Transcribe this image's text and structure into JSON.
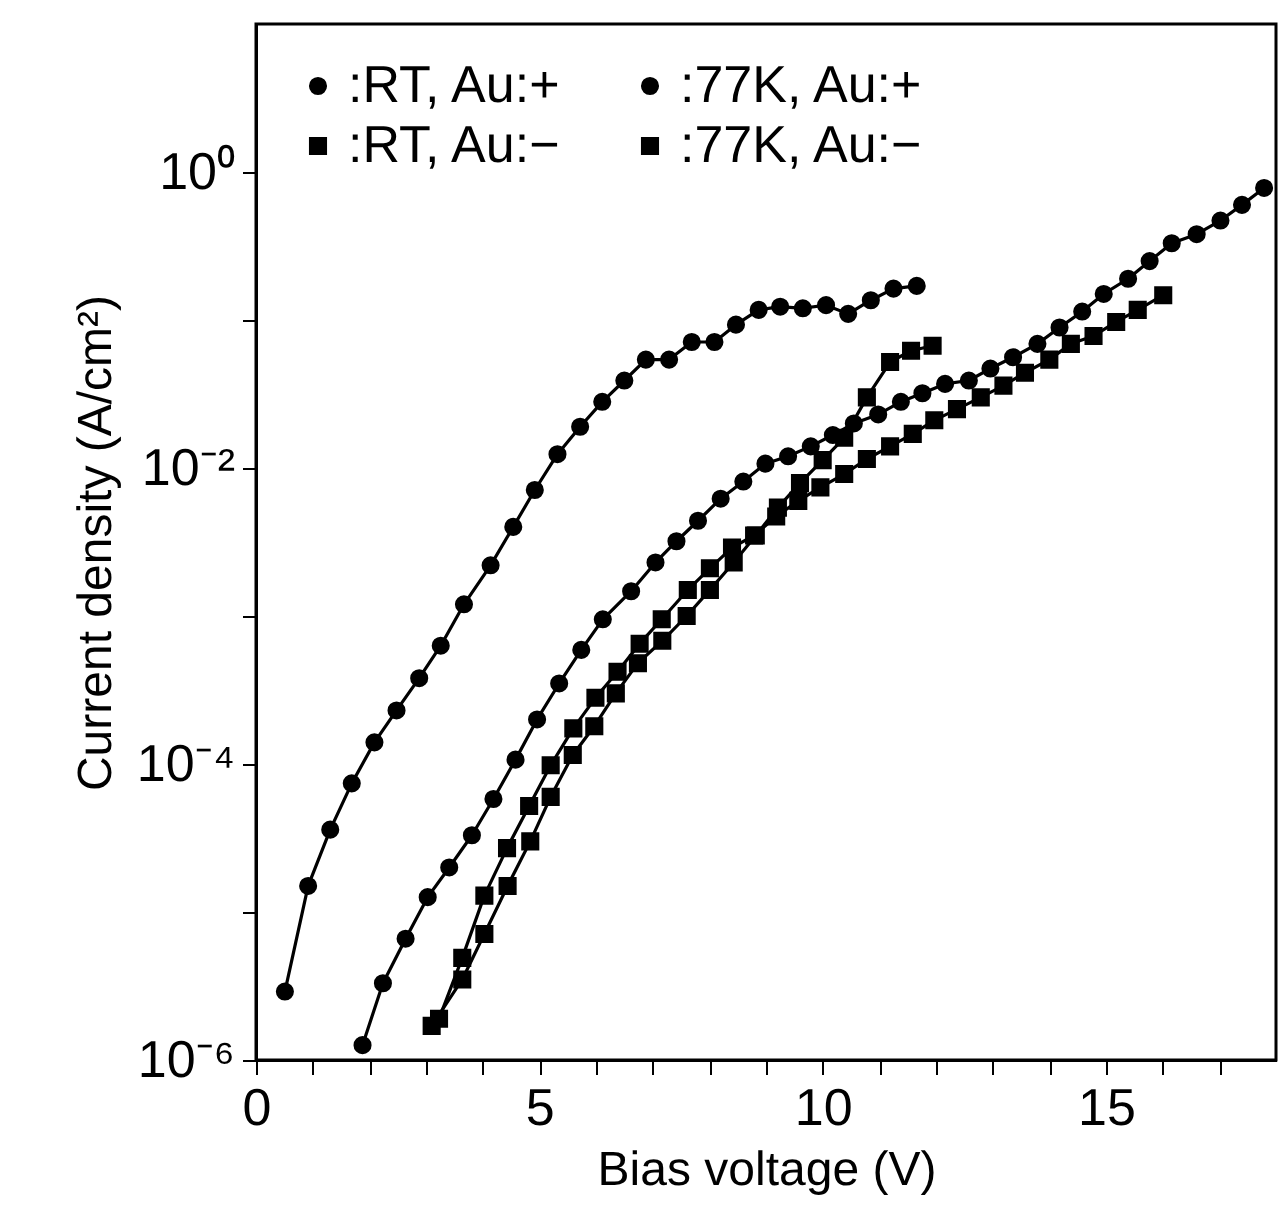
{
  "chart_data": {
    "type": "line",
    "xlabel": "Bias voltage (V)",
    "ylabel": "Current density (A/cm²)",
    "log": "y",
    "grid": false,
    "legend": "top left",
    "line_style": "solid",
    "xlim": [
      0,
      18
    ],
    "xticks": [
      0,
      {
        "value": 1,
        "label": null
      },
      {
        "value": 2,
        "label": null
      },
      {
        "value": 3,
        "label": null
      },
      {
        "value": 4,
        "label": null
      },
      5,
      {
        "value": 6,
        "label": null
      },
      {
        "value": 7,
        "label": null
      },
      {
        "value": 8,
        "label": null
      },
      {
        "value": 9,
        "label": null
      },
      10,
      {
        "value": 11,
        "label": null
      },
      {
        "value": 12,
        "label": null
      },
      {
        "value": 13,
        "label": null
      },
      {
        "value": 14,
        "label": null
      },
      15,
      {
        "value": 16,
        "label": null
      },
      {
        "value": 17,
        "label": null
      }
    ],
    "ylim": [
      1e-06,
      10
    ],
    "yticks": [
      {
        "value": 1e-06,
        "label": "10⁻⁶"
      },
      {
        "value": 1e-05,
        "label": null
      },
      {
        "value": 0.0001,
        "label": "10⁻⁴"
      },
      {
        "value": 0.001,
        "label": null
      },
      {
        "value": 0.01,
        "label": "10⁻²"
      },
      {
        "value": 0.1,
        "label": null
      },
      {
        "value": 1,
        "label": "10⁰"
      }
    ],
    "series": [
      {
        "name": ":RT, Au:+",
        "color": "#000000",
        "marker": "circle",
        "x": [
          0.51,
          0.92,
          1.31,
          1.69,
          2.09,
          2.48,
          2.88,
          3.26,
          3.67,
          4.14,
          4.54,
          4.92,
          5.32,
          5.72,
          6.11,
          6.5,
          6.88,
          7.29,
          7.69,
          8.09,
          8.47,
          8.87,
          9.25,
          9.65,
          10.06,
          10.45,
          10.85,
          11.25,
          11.66
        ],
        "values": [
          2.9e-06,
          1.5e-05,
          3.6e-05,
          7.4e-05,
          0.00014,
          0.00023,
          0.00038,
          0.00063,
          0.0012,
          0.0022,
          0.004,
          0.0071,
          0.0124,
          0.019,
          0.028,
          0.039,
          0.054,
          0.054,
          0.071,
          0.071,
          0.093,
          0.117,
          0.123,
          0.12,
          0.126,
          0.11,
          0.136,
          0.163,
          0.17
        ]
      },
      {
        "name": ":RT, Au:−",
        "color": "#000000",
        "marker": "square",
        "x": [
          3.1,
          3.64,
          4.03,
          4.44,
          4.84,
          5.2,
          5.59,
          5.97,
          6.35,
          6.74,
          7.17,
          7.6,
          8.01,
          8.43,
          8.82,
          9.21,
          9.6,
          10.0,
          10.38,
          10.78,
          11.19,
          11.56,
          11.94
        ],
        "values": [
          1.7e-06,
          3.5e-06,
          7.1e-06,
          1.5e-05,
          3e-05,
          6e-05,
          0.000115,
          0.00018,
          0.0003,
          0.00048,
          0.00068,
          0.001,
          0.0015,
          0.0023,
          0.0035,
          0.0054,
          0.0079,
          0.0113,
          0.016,
          0.03,
          0.052,
          0.062,
          0.067
        ]
      },
      {
        "name": ":77K, Au:+",
        "color": "#000000",
        "marker": "circle",
        "x": [
          1.88,
          2.24,
          2.64,
          3.03,
          3.41,
          3.81,
          4.19,
          4.58,
          4.96,
          5.35,
          5.74,
          6.12,
          6.62,
          7.05,
          7.42,
          7.8,
          8.2,
          8.6,
          8.99,
          9.39,
          9.79,
          10.18,
          10.55,
          10.98,
          11.38,
          11.76,
          12.16,
          12.58,
          12.96,
          13.36,
          13.79,
          14.18,
          14.58,
          14.96,
          15.39,
          15.77,
          16.16,
          16.6,
          17.02,
          17.4,
          17.79
        ],
        "values": [
          1.26e-06,
          3.3e-06,
          6.6e-06,
          1.26e-05,
          2e-05,
          3.3e-05,
          5.8e-05,
          0.000107,
          0.0002,
          0.00035,
          0.00059,
          0.00095,
          0.00147,
          0.0023,
          0.0032,
          0.0044,
          0.0062,
          0.0081,
          0.0107,
          0.012,
          0.014,
          0.0167,
          0.02,
          0.023,
          0.028,
          0.032,
          0.037,
          0.039,
          0.047,
          0.056,
          0.069,
          0.089,
          0.114,
          0.15,
          0.19,
          0.25,
          0.33,
          0.38,
          0.47,
          0.6,
          0.78
        ]
      },
      {
        "name": ":77K, Au:−",
        "color": "#000000",
        "marker": "square",
        "x": [
          3.23,
          3.64,
          4.03,
          4.43,
          4.82,
          5.2,
          5.6,
          5.99,
          6.38,
          6.77,
          7.16,
          7.62,
          8.01,
          8.4,
          8.79,
          9.18,
          9.57,
          9.96,
          10.38,
          10.78,
          11.19,
          11.59,
          11.97,
          12.37,
          12.79,
          13.19,
          13.57,
          14.0,
          14.38,
          14.78,
          15.18,
          15.56,
          16.01
        ],
        "values": [
          1.9e-06,
          4.9e-06,
          1.29e-05,
          2.7e-05,
          5.2e-05,
          9.8e-05,
          0.000174,
          0.00028,
          0.00042,
          0.00065,
          0.00095,
          0.0015,
          0.0021,
          0.0029,
          0.0035,
          0.0047,
          0.006,
          0.0074,
          0.0091,
          0.0115,
          0.014,
          0.017,
          0.021,
          0.025,
          0.03,
          0.036,
          0.044,
          0.054,
          0.069,
          0.078,
          0.097,
          0.117,
          0.147
        ]
      }
    ]
  }
}
